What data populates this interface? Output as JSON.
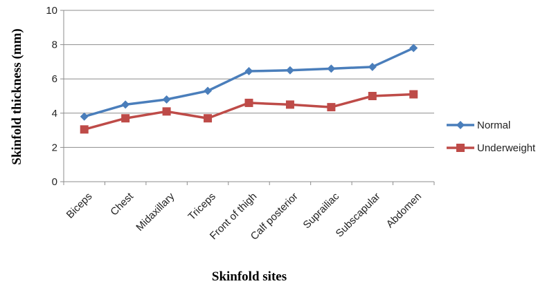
{
  "chart_data": {
    "type": "line",
    "title": "",
    "xlabel": "Skinfold sites",
    "ylabel": "Skinfold thickness (mm)",
    "ylim": [
      0,
      10
    ],
    "yticks": [
      "0",
      "2",
      "4",
      "6",
      "8",
      "10"
    ],
    "grid": "horizontal",
    "legend": "right",
    "categories": [
      "Biceps",
      "Chest",
      "Midaxillary",
      "Triceps",
      "Front of thigh",
      "Calf posterior",
      "Suprailiac",
      "Subscapular",
      "Abdomen"
    ],
    "series": [
      {
        "name": "Normal",
        "color": "#4a7ebb",
        "marker": "diamond",
        "values": [
          3.8,
          4.5,
          4.8,
          5.3,
          6.45,
          6.5,
          6.6,
          6.7,
          7.8
        ]
      },
      {
        "name": "Underweight",
        "color": "#be4b48",
        "marker": "square",
        "values": [
          3.05,
          3.7,
          4.1,
          3.7,
          4.6,
          4.5,
          4.35,
          5.0,
          5.1
        ]
      }
    ]
  }
}
